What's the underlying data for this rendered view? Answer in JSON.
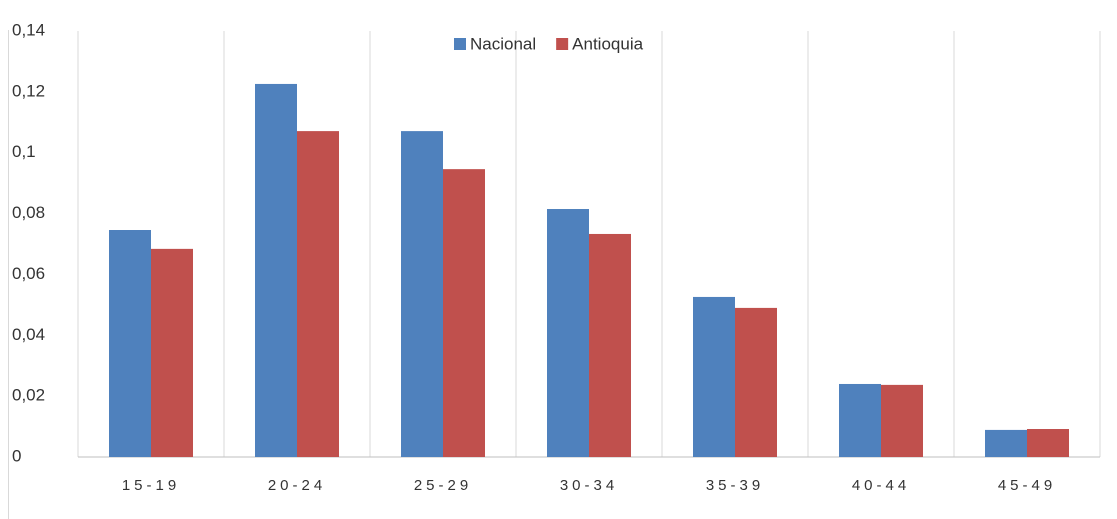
{
  "chart_data": {
    "type": "bar",
    "categories": [
      "15-19",
      "20-24",
      "25-29",
      "30-34",
      "35-39",
      "40-44",
      "45-49"
    ],
    "series": [
      {
        "name": "Nacional",
        "color": "#4f81bd",
        "values": [
          0.0746,
          0.1226,
          0.1071,
          0.0815,
          0.0526,
          0.024,
          0.0089
        ]
      },
      {
        "name": "Antioquia",
        "color": "#c0504d",
        "values": [
          0.0684,
          0.1071,
          0.0946,
          0.0733,
          0.049,
          0.0237,
          0.0092
        ]
      }
    ],
    "ylim": [
      0,
      0.14
    ],
    "yticks": [
      0,
      {
        "value": 0.02,
        "label": "0,02"
      },
      {
        "value": 0.04,
        "label": "0,04"
      },
      {
        "value": 0.06,
        "label": "0,06"
      },
      {
        "value": 0.08,
        "label": "0,08"
      },
      {
        "value": 0.1,
        "label": "0,1"
      },
      {
        "value": 0.12,
        "label": "0,12"
      },
      {
        "value": 0.14,
        "label": "0,14"
      }
    ],
    "grid": true,
    "legend": "top"
  }
}
